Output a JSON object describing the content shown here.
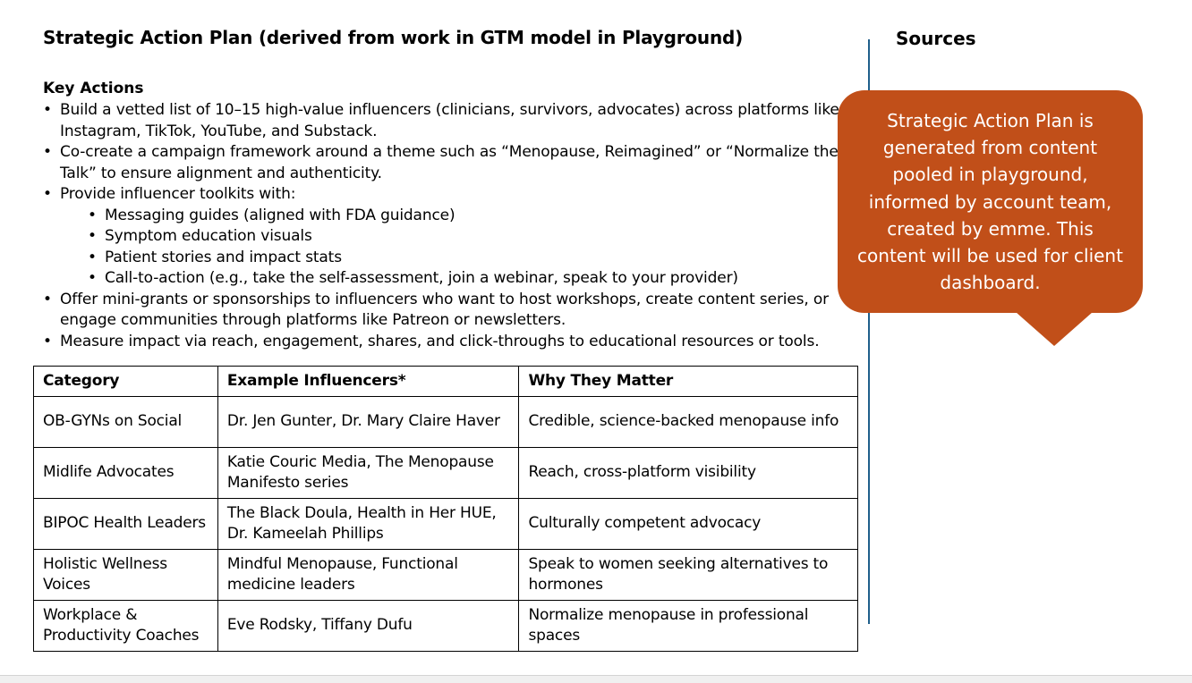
{
  "page": {
    "title": "Strategic Action Plan (derived from work in GTM model in Playground)"
  },
  "key_actions": {
    "heading": "Key Actions",
    "items": [
      "Build a vetted list of 10–15 high-value influencers (clinicians, survivors, advocates) across platforms like Instagram, TikTok, YouTube, and Substack.",
      "Co-create a campaign framework around a theme such as “Menopause, Reimagined” or “Normalize the Talk” to ensure alignment and authenticity.",
      "Provide influencer toolkits with:",
      "Offer mini-grants or sponsorships to influencers who want to host workshops, create content series, or engage communities through platforms like Patreon or newsletters.",
      "Measure impact via reach, engagement, shares, and click-throughs to educational resources or tools."
    ],
    "toolkit_items": [
      "Messaging guides (aligned with FDA guidance)",
      "Symptom education visuals",
      "Patient stories and impact stats",
      "Call-to-action (e.g., take the self-assessment, join a webinar, speak to your provider)"
    ]
  },
  "table": {
    "headers": [
      "Category",
      "Example Influencers*",
      "Why They Matter"
    ],
    "rows": [
      [
        "OB-GYNs on Social",
        "Dr. Jen Gunter, Dr. Mary Claire Haver",
        "Credible, science-backed menopause info"
      ],
      [
        "Midlife Advocates",
        "Katie Couric Media, The Menopause Manifesto series",
        "Reach, cross-platform visibility"
      ],
      [
        "BIPOC Health Leaders",
        "The Black Doula, Health in Her HUE, Dr. Kameelah Phillips",
        "Culturally competent advocacy"
      ],
      [
        "Holistic Wellness Voices",
        "Mindful Menopause, Functional medicine leaders",
        "Speak to women seeking alternatives to hormones"
      ],
      [
        "Workplace & Productivity Coaches",
        "Eve Rodsky, Tiffany Dufu",
        "Normalize menopause in professional spaces"
      ]
    ]
  },
  "sources": {
    "title": "Sources"
  },
  "callout": {
    "text": "Strategic Action Plan is generated from content pooled in playground, informed by account team, created by emme. This content will be used for client dashboard."
  },
  "colors": {
    "callout_bg": "#c14f19",
    "divider": "#1f5f8b"
  }
}
